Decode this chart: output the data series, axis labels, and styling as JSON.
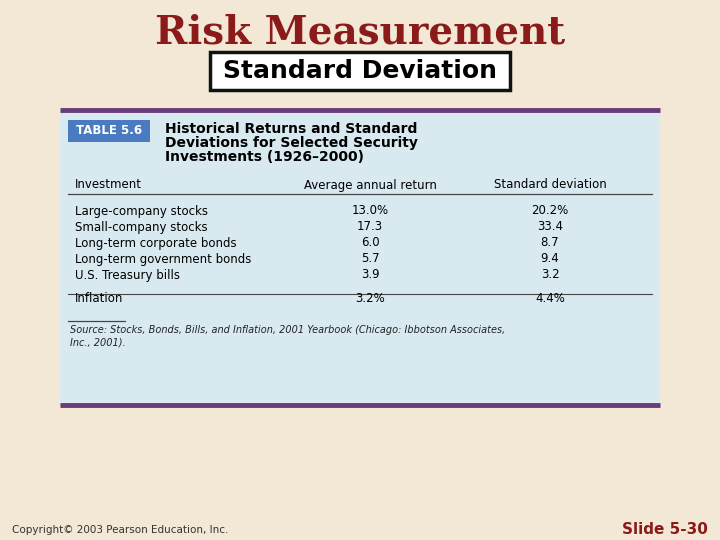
{
  "title": "Risk Measurement",
  "subtitle": "Standard Deviation",
  "bg_color": "#f2e8d5",
  "title_color": "#8b1a1a",
  "table_bg": "#d8eaf0",
  "table_header_bg": "#4a7abf",
  "table_border_color": "#6a3a7a",
  "table_label": "TABLE 5.6",
  "table_title_line1": "Historical Returns and Standard",
  "table_title_line2": "Deviations for Selected Security",
  "table_title_line3": "Investments (1926–2000)",
  "col_headers": [
    "Investment",
    "Average annual return",
    "Standard deviation"
  ],
  "rows": [
    [
      "Large-company stocks",
      "13.0%",
      "20.2%"
    ],
    [
      "Small-company stocks",
      "17.3",
      "33.4"
    ],
    [
      "Long-term corporate bonds",
      "6.0",
      "8.7"
    ],
    [
      "Long-term government bonds",
      "5.7",
      "9.4"
    ],
    [
      "U.S. Treasury bills",
      "3.9",
      "3.2"
    ],
    [
      "Inflation",
      "3.2%",
      "4.4%"
    ]
  ],
  "source_text": "Source: Stocks, Bonds, Bills, and Inflation, 2001 Yearbook (Chicago: Ibbotson Associates,\nInc., 2001).",
  "copyright_text": "Copyright© 2003 Pearson Education, Inc.",
  "slide_text": "Slide 5-30"
}
